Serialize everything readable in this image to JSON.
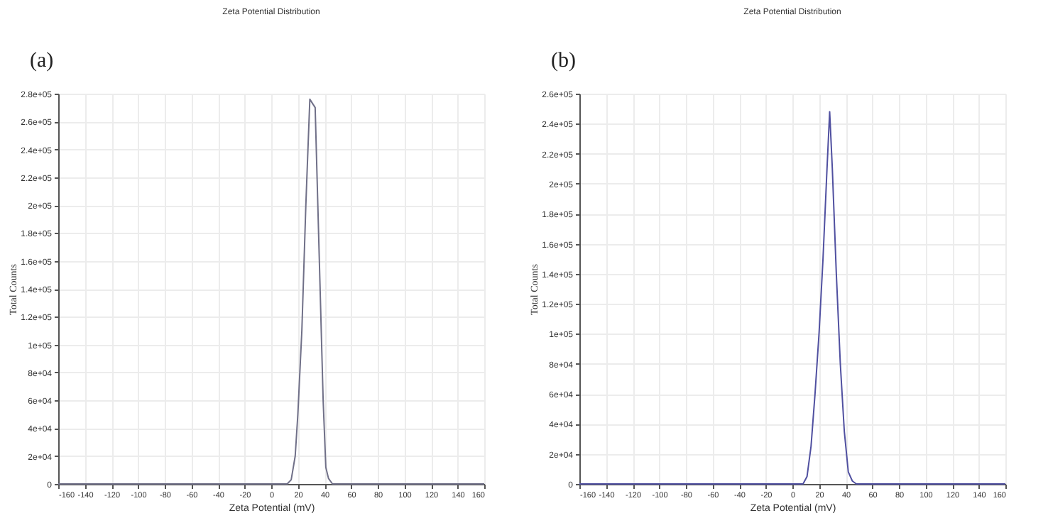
{
  "chart_data": [
    {
      "type": "line",
      "title": "Zeta Potential Distribution",
      "xlabel": "Zeta Potential (mV)",
      "ylabel": "Total Counts",
      "annotations": [
        "(a)"
      ],
      "grid": true,
      "x": [
        -160,
        5,
        12,
        15,
        18,
        20,
        23,
        26,
        29,
        33,
        35,
        37,
        39,
        41,
        43,
        46,
        160
      ],
      "series": [
        {
          "color": "#707088",
          "values": [
            0,
            0,
            0,
            3000,
            20000,
            50000,
            110000,
            200000,
            276000,
            270000,
            200000,
            130000,
            60000,
            12000,
            4000,
            0,
            0
          ]
        }
      ],
      "xlim": [
        -160,
        160
      ],
      "xticks": [
        -160,
        -140,
        -120,
        -100,
        -80,
        -60,
        -40,
        -20,
        0,
        20,
        40,
        60,
        80,
        100,
        120,
        140,
        160
      ],
      "ylim": [
        0,
        280000
      ],
      "yticks": [
        0,
        {
          "value": 20000,
          "label": "2e+04"
        },
        {
          "value": 40000,
          "label": "4e+04"
        },
        {
          "value": 60000,
          "label": "6e+04"
        },
        {
          "value": 80000,
          "label": "8e+04"
        },
        {
          "value": 100000,
          "label": "1e+05"
        },
        {
          "value": 120000,
          "label": "1.2e+05"
        },
        {
          "value": 140000,
          "label": "1.4e+05"
        },
        {
          "value": 160000,
          "label": "1.6e+05"
        },
        {
          "value": 180000,
          "label": "1.8e+05"
        },
        {
          "value": 200000,
          "label": "2e+05"
        },
        {
          "value": 220000,
          "label": "2.2e+05"
        },
        {
          "value": 240000,
          "label": "2.4e+05"
        },
        {
          "value": 260000,
          "label": "2.6e+05"
        },
        {
          "value": 280000,
          "label": "2.8e+05"
        }
      ]
    },
    {
      "type": "line",
      "title": "Zeta Potential Distribution",
      "xlabel": "Zeta Potential (mV)",
      "ylabel": "Total Counts",
      "annotations": [
        "(b)"
      ],
      "grid": true,
      "x": [
        -160,
        8,
        11,
        14,
        17,
        20,
        23,
        26,
        28,
        30,
        33,
        36,
        39,
        42,
        45,
        48,
        160
      ],
      "series": [
        {
          "color": "#5050a0",
          "values": [
            0,
            0,
            5000,
            25000,
            60000,
            100000,
            150000,
            210000,
            248000,
            210000,
            140000,
            80000,
            35000,
            8000,
            2000,
            0,
            0
          ]
        }
      ],
      "xlim": [
        -160,
        160
      ],
      "xticks": [
        -160,
        -140,
        -120,
        -100,
        -80,
        -60,
        -40,
        -20,
        0,
        20,
        40,
        60,
        80,
        100,
        120,
        140,
        160
      ],
      "ylim": [
        0,
        260000
      ],
      "yticks": [
        0,
        {
          "value": 20000,
          "label": "2e+04"
        },
        {
          "value": 40000,
          "label": "4e+04"
        },
        {
          "value": 60000,
          "label": "6e+04"
        },
        {
          "value": 80000,
          "label": "8e+04"
        },
        {
          "value": 100000,
          "label": "1e+05"
        },
        {
          "value": 120000,
          "label": "1.2e+05"
        },
        {
          "value": 140000,
          "label": "1.4e+05"
        },
        {
          "value": 160000,
          "label": "1.6e+05"
        },
        {
          "value": 180000,
          "label": "1.8e+05"
        },
        {
          "value": 200000,
          "label": "2e+05"
        },
        {
          "value": 220000,
          "label": "2.2e+05"
        },
        {
          "value": 240000,
          "label": "2.4e+05"
        },
        {
          "value": 260000,
          "label": "2.6e+05"
        }
      ]
    }
  ]
}
